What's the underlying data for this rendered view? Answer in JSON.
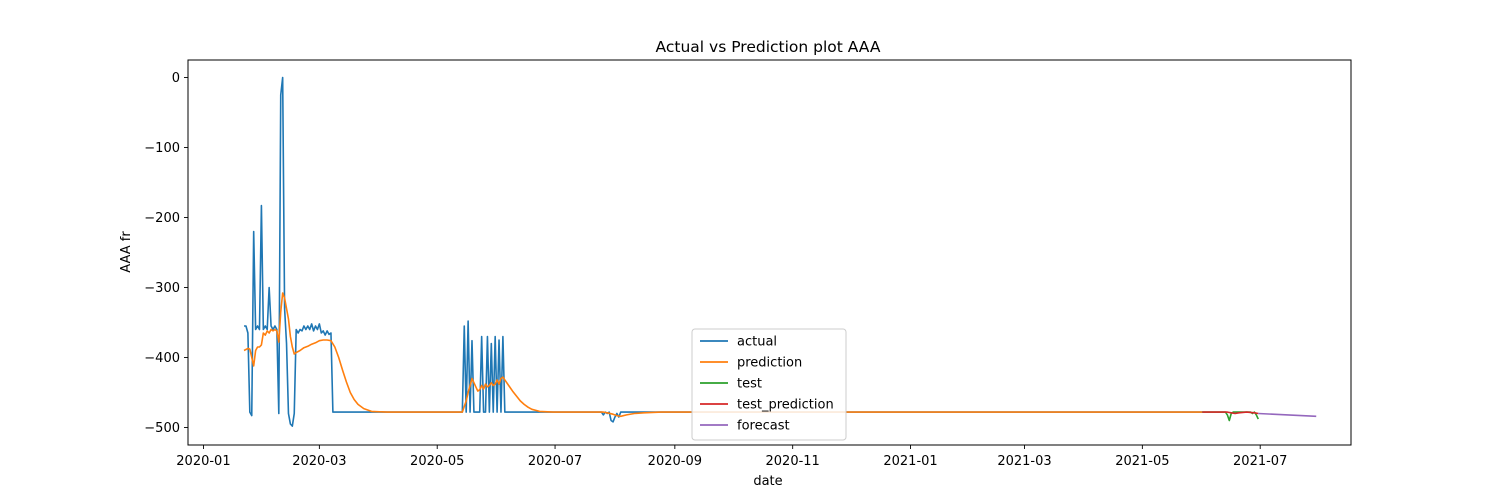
{
  "chart_data": {
    "type": "line",
    "title": "Actual vs Prediction plot AAA",
    "xlabel": "date",
    "ylabel": "AAA fr",
    "x_axis_type": "date",
    "xlim": [
      "2019-12-24",
      "2021-08-17"
    ],
    "ylim": [
      -525,
      25
    ],
    "x_ticks": [
      "2020-01-01",
      "2020-03-01",
      "2020-05-01",
      "2020-07-01",
      "2020-09-01",
      "2020-11-01",
      "2021-01-01",
      "2021-03-01",
      "2021-05-01",
      "2021-07-01"
    ],
    "x_tick_labels": [
      "2020-01",
      "2020-03",
      "2020-05",
      "2020-07",
      "2020-09",
      "2020-11",
      "2021-01",
      "2021-03",
      "2021-05",
      "2021-07"
    ],
    "y_ticks": [
      0,
      -100,
      -200,
      -300,
      -400,
      -500
    ],
    "y_tick_labels": [
      "0",
      "−100",
      "−200",
      "−300",
      "−400",
      "−500"
    ],
    "grid": false,
    "legend_position": "lower-center",
    "series": [
      {
        "name": "actual",
        "color": "#1f77b4",
        "points": [
          [
            "2020-01-22",
            -355
          ],
          [
            "2020-01-23",
            -355
          ],
          [
            "2020-01-24",
            -365
          ],
          [
            "2020-01-25",
            -478
          ],
          [
            "2020-01-26",
            -483
          ],
          [
            "2020-01-27",
            -220
          ],
          [
            "2020-01-28",
            -360
          ],
          [
            "2020-01-29",
            -355
          ],
          [
            "2020-01-30",
            -360
          ],
          [
            "2020-01-31",
            -183
          ],
          [
            "2020-02-01",
            -360
          ],
          [
            "2020-02-02",
            -355
          ],
          [
            "2020-02-03",
            -360
          ],
          [
            "2020-02-04",
            -300
          ],
          [
            "2020-02-05",
            -355
          ],
          [
            "2020-02-06",
            -360
          ],
          [
            "2020-02-07",
            -355
          ],
          [
            "2020-02-08",
            -360
          ],
          [
            "2020-02-09",
            -480
          ],
          [
            "2020-02-10",
            -25
          ],
          [
            "2020-02-11",
            0
          ],
          [
            "2020-02-12",
            -330
          ],
          [
            "2020-02-13",
            -380
          ],
          [
            "2020-02-14",
            -480
          ],
          [
            "2020-02-15",
            -495
          ],
          [
            "2020-02-16",
            -498
          ],
          [
            "2020-02-17",
            -480
          ],
          [
            "2020-02-18",
            -360
          ],
          [
            "2020-02-19",
            -365
          ],
          [
            "2020-02-20",
            -360
          ],
          [
            "2020-02-21",
            -362
          ],
          [
            "2020-02-22",
            -355
          ],
          [
            "2020-02-23",
            -360
          ],
          [
            "2020-02-24",
            -355
          ],
          [
            "2020-02-25",
            -360
          ],
          [
            "2020-02-26",
            -352
          ],
          [
            "2020-02-27",
            -362
          ],
          [
            "2020-02-28",
            -355
          ],
          [
            "2020-02-29",
            -360
          ],
          [
            "2020-03-01",
            -352
          ],
          [
            "2020-03-02",
            -365
          ],
          [
            "2020-03-03",
            -362
          ],
          [
            "2020-03-04",
            -368
          ],
          [
            "2020-03-05",
            -362
          ],
          [
            "2020-03-06",
            -367
          ],
          [
            "2020-03-07",
            -365
          ],
          [
            "2020-03-08",
            -478
          ],
          [
            "2020-05-14",
            -478
          ],
          [
            "2020-05-15",
            -355
          ],
          [
            "2020-05-16",
            -478
          ],
          [
            "2020-05-17",
            -348
          ],
          [
            "2020-05-18",
            -478
          ],
          [
            "2020-05-19",
            -376
          ],
          [
            "2020-05-20",
            -478
          ],
          [
            "2020-05-21",
            -478
          ],
          [
            "2020-05-22",
            -478
          ],
          [
            "2020-05-23",
            -478
          ],
          [
            "2020-05-24",
            -370
          ],
          [
            "2020-05-25",
            -478
          ],
          [
            "2020-05-26",
            -478
          ],
          [
            "2020-05-27",
            -370
          ],
          [
            "2020-05-28",
            -478
          ],
          [
            "2020-05-29",
            -380
          ],
          [
            "2020-05-30",
            -478
          ],
          [
            "2020-05-31",
            -370
          ],
          [
            "2020-06-01",
            -478
          ],
          [
            "2020-06-02",
            -375
          ],
          [
            "2020-06-03",
            -478
          ],
          [
            "2020-06-04",
            -370
          ],
          [
            "2020-06-05",
            -478
          ],
          [
            "2020-06-06",
            -478
          ],
          [
            "2020-07-25",
            -478
          ],
          [
            "2020-07-26",
            -482
          ],
          [
            "2020-07-27",
            -478
          ],
          [
            "2020-07-28",
            -480
          ],
          [
            "2020-07-29",
            -478
          ],
          [
            "2020-07-30",
            -490
          ],
          [
            "2020-07-31",
            -492
          ],
          [
            "2020-08-01",
            -485
          ],
          [
            "2020-08-02",
            -480
          ],
          [
            "2020-08-03",
            -485
          ],
          [
            "2020-08-04",
            -478
          ],
          [
            "2021-06-01",
            -478
          ]
        ]
      },
      {
        "name": "prediction",
        "color": "#ff7f0e",
        "points": [
          [
            "2020-01-22",
            -390
          ],
          [
            "2020-01-24",
            -387
          ],
          [
            "2020-01-25",
            -388
          ],
          [
            "2020-01-26",
            -400
          ],
          [
            "2020-01-27",
            -412
          ],
          [
            "2020-01-28",
            -390
          ],
          [
            "2020-01-29",
            -385
          ],
          [
            "2020-01-30",
            -385
          ],
          [
            "2020-01-31",
            -382
          ],
          [
            "2020-02-01",
            -365
          ],
          [
            "2020-02-02",
            -368
          ],
          [
            "2020-02-03",
            -362
          ],
          [
            "2020-02-04",
            -365
          ],
          [
            "2020-02-05",
            -360
          ],
          [
            "2020-02-06",
            -362
          ],
          [
            "2020-02-07",
            -360
          ],
          [
            "2020-02-08",
            -362
          ],
          [
            "2020-02-09",
            -378
          ],
          [
            "2020-02-10",
            -335
          ],
          [
            "2020-02-11",
            -308
          ],
          [
            "2020-02-12",
            -315
          ],
          [
            "2020-02-13",
            -330
          ],
          [
            "2020-02-14",
            -345
          ],
          [
            "2020-02-15",
            -370
          ],
          [
            "2020-02-16",
            -385
          ],
          [
            "2020-02-17",
            -395
          ],
          [
            "2020-02-18",
            -393
          ],
          [
            "2020-02-20",
            -390
          ],
          [
            "2020-02-22",
            -386
          ],
          [
            "2020-02-24",
            -384
          ],
          [
            "2020-02-26",
            -381
          ],
          [
            "2020-02-28",
            -379
          ],
          [
            "2020-03-01",
            -376
          ],
          [
            "2020-03-03",
            -375
          ],
          [
            "2020-03-05",
            -375
          ],
          [
            "2020-03-07",
            -376
          ],
          [
            "2020-03-09",
            -385
          ],
          [
            "2020-03-11",
            -400
          ],
          [
            "2020-03-13",
            -418
          ],
          [
            "2020-03-15",
            -435
          ],
          [
            "2020-03-17",
            -450
          ],
          [
            "2020-03-19",
            -460
          ],
          [
            "2020-03-21",
            -467
          ],
          [
            "2020-03-24",
            -473
          ],
          [
            "2020-03-28",
            -477
          ],
          [
            "2020-04-05",
            -478
          ],
          [
            "2020-05-14",
            -478
          ],
          [
            "2020-05-15",
            -470
          ],
          [
            "2020-05-16",
            -462
          ],
          [
            "2020-05-17",
            -450
          ],
          [
            "2020-05-18",
            -440
          ],
          [
            "2020-05-19",
            -430
          ],
          [
            "2020-05-20",
            -436
          ],
          [
            "2020-05-21",
            -442
          ],
          [
            "2020-05-22",
            -448
          ],
          [
            "2020-05-23",
            -446
          ],
          [
            "2020-05-24",
            -440
          ],
          [
            "2020-05-25",
            -445
          ],
          [
            "2020-05-26",
            -438
          ],
          [
            "2020-05-27",
            -442
          ],
          [
            "2020-05-28",
            -440
          ],
          [
            "2020-05-29",
            -436
          ],
          [
            "2020-05-30",
            -440
          ],
          [
            "2020-05-31",
            -438
          ],
          [
            "2020-06-01",
            -432
          ],
          [
            "2020-06-02",
            -438
          ],
          [
            "2020-06-03",
            -430
          ],
          [
            "2020-06-04",
            -428
          ],
          [
            "2020-06-05",
            -432
          ],
          [
            "2020-06-07",
            -440
          ],
          [
            "2020-06-09",
            -448
          ],
          [
            "2020-06-11",
            -455
          ],
          [
            "2020-06-13",
            -462
          ],
          [
            "2020-06-15",
            -467
          ],
          [
            "2020-06-17",
            -471
          ],
          [
            "2020-06-19",
            -474
          ],
          [
            "2020-06-23",
            -477
          ],
          [
            "2020-06-30",
            -478
          ],
          [
            "2020-07-26",
            -478
          ],
          [
            "2020-07-28",
            -479
          ],
          [
            "2020-07-31",
            -481
          ],
          [
            "2020-08-02",
            -483
          ],
          [
            "2020-08-04",
            -484
          ],
          [
            "2020-08-07",
            -482
          ],
          [
            "2020-08-11",
            -480
          ],
          [
            "2020-08-16",
            -479
          ],
          [
            "2020-08-25",
            -478
          ],
          [
            "2021-06-01",
            -478
          ]
        ]
      },
      {
        "name": "test",
        "color": "#2ca02c",
        "points": [
          [
            "2021-06-01",
            -478
          ],
          [
            "2021-06-13",
            -478
          ],
          [
            "2021-06-14",
            -482
          ],
          [
            "2021-06-15",
            -490
          ],
          [
            "2021-06-16",
            -480
          ],
          [
            "2021-06-17",
            -478
          ],
          [
            "2021-06-26",
            -478
          ],
          [
            "2021-06-27",
            -480
          ],
          [
            "2021-06-28",
            -478
          ],
          [
            "2021-06-29",
            -482
          ],
          [
            "2021-06-30",
            -488
          ]
        ]
      },
      {
        "name": "test_prediction",
        "color": "#d62728",
        "points": [
          [
            "2021-06-01",
            -478
          ],
          [
            "2021-06-14",
            -478
          ],
          [
            "2021-06-16",
            -479
          ],
          [
            "2021-06-18",
            -480
          ],
          [
            "2021-06-20",
            -479
          ],
          [
            "2021-06-24",
            -478
          ],
          [
            "2021-06-28",
            -479
          ],
          [
            "2021-06-30",
            -480
          ]
        ]
      },
      {
        "name": "forecast",
        "color": "#9467bd",
        "points": [
          [
            "2021-06-30",
            -480
          ],
          [
            "2021-07-30",
            -484
          ]
        ]
      }
    ]
  }
}
